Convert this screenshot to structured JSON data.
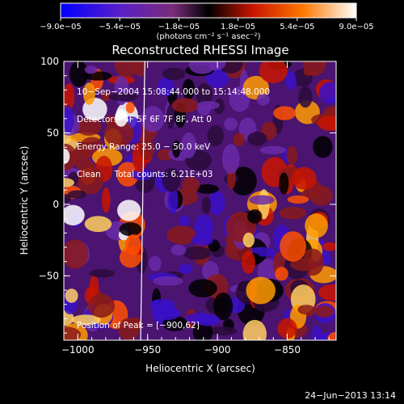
{
  "chart_data": {
    "type": "heatmap",
    "title": "Reconstructed RHESSI Image",
    "xlabel": "Heliocentric X (arcsec)",
    "ylabel": "Heliocentric Y (arcsec)",
    "xlim": [
      -1010,
      -815
    ],
    "ylim": [
      -95,
      100
    ],
    "xticks": [
      -1000,
      -950,
      -900,
      -850
    ],
    "xtick_labels": [
      "−1000",
      "−950",
      "−900",
      "−850"
    ],
    "yticks": [
      -50,
      0,
      50,
      100
    ],
    "ytick_labels": [
      "−50",
      "0",
      "50",
      "100"
    ],
    "colorbar": {
      "min": -9e-05,
      "max": 9e-05,
      "tick_labels": [
        "−9.0e−05",
        "−5.4e−05",
        "−1.8e−05",
        "1.8e−05",
        "5.4e−05",
        "9.0e−05"
      ],
      "unit_label": "(photons cm⁻² s⁻¹ asec⁻²)",
      "colors": [
        "#0000ff",
        "#5a1ec8",
        "#7a2c7a",
        "#000000",
        "#c81400",
        "#ff7800",
        "#ffffff"
      ]
    },
    "info_lines": [
      "10−Sep−2004 15:08:44.000 to 15:14:48.000",
      "Detectors: 4F 5F 6F 7F 8F, Att 0",
      "Energy Range: 25.0 − 50.0 keV",
      "Clean     Total counts: 6.21E+03"
    ],
    "peak_label": "Position of Peak = [−900,62]",
    "limb_line_x": [
      -952,
      -955
    ]
  },
  "footer": {
    "timestamp": "24−Jun−2013 13:14"
  }
}
